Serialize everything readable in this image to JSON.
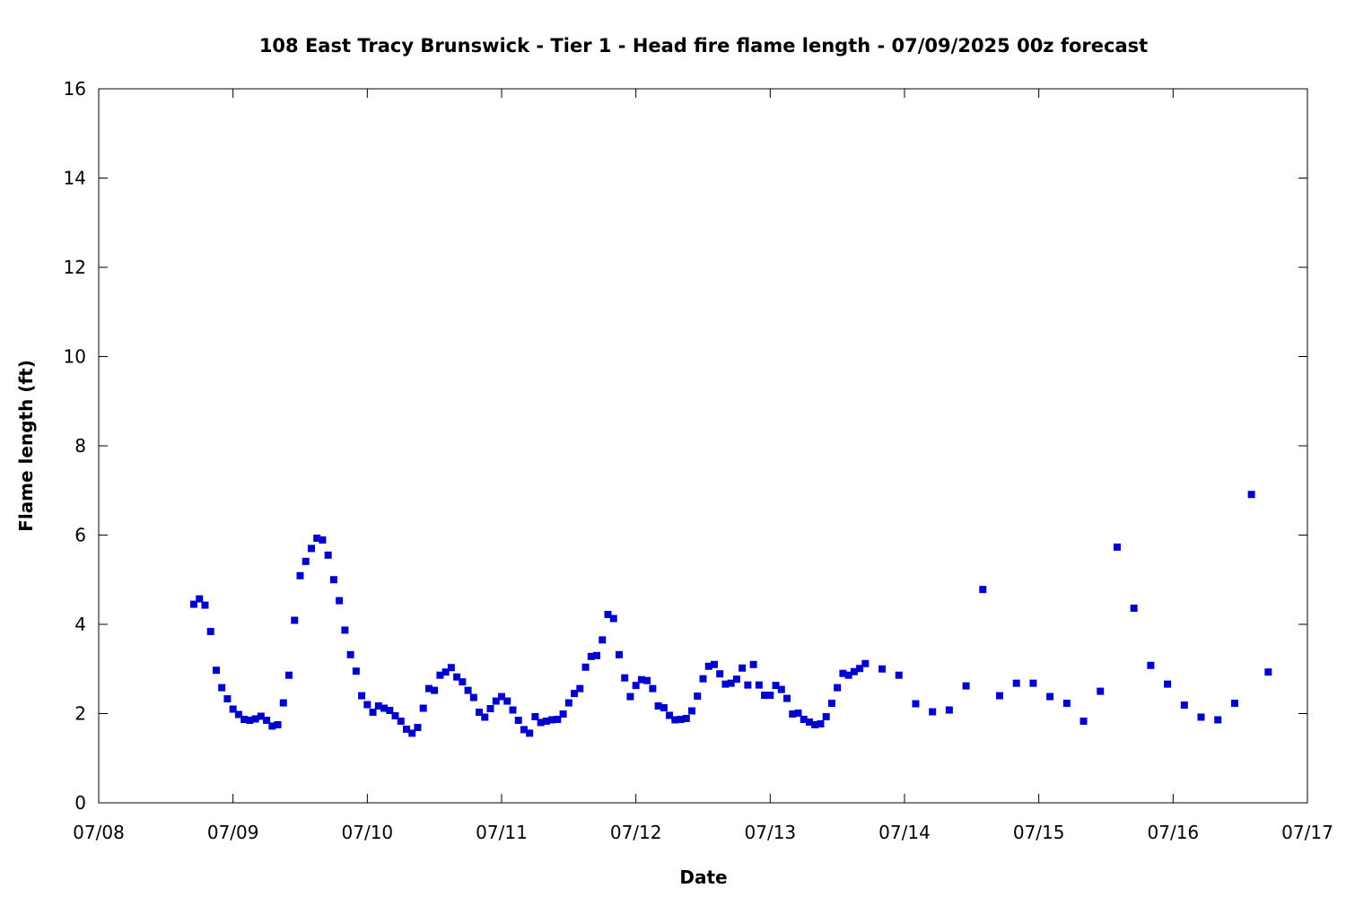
{
  "chart_data": {
    "type": "scatter",
    "title": "108 East Tracy Brunswick - Tier 1 - Head fire flame length - 07/09/2025 00z forecast",
    "xlabel": "Date",
    "ylabel": "Flame length (ft)",
    "xlim": [
      "2025-07-08 00:00",
      "2025-07-17 00:00"
    ],
    "ylim": [
      0,
      16
    ],
    "x_ticks": [
      "07/08",
      "07/09",
      "07/10",
      "07/11",
      "07/12",
      "07/13",
      "07/14",
      "07/15",
      "07/16",
      "07/17"
    ],
    "y_ticks": [
      "0",
      "2",
      "4",
      "6",
      "8",
      "10",
      "12",
      "14",
      "16"
    ],
    "grid": false,
    "legend": "none",
    "marker": "square",
    "marker_color": "#0000cc",
    "series": [
      {
        "x": [
          "2025-07-08 17:00",
          "2025-07-08 18:00",
          "2025-07-08 19:00",
          "2025-07-08 20:00",
          "2025-07-08 21:00",
          "2025-07-08 22:00",
          "2025-07-08 23:00",
          "2025-07-09 00:00",
          "2025-07-09 01:00",
          "2025-07-09 02:00",
          "2025-07-09 03:00",
          "2025-07-09 04:00",
          "2025-07-09 05:00",
          "2025-07-09 06:00",
          "2025-07-09 07:00",
          "2025-07-09 08:00",
          "2025-07-09 09:00",
          "2025-07-09 10:00",
          "2025-07-09 11:00",
          "2025-07-09 12:00",
          "2025-07-09 13:00",
          "2025-07-09 14:00",
          "2025-07-09 15:00",
          "2025-07-09 16:00",
          "2025-07-09 17:00",
          "2025-07-09 18:00",
          "2025-07-09 19:00",
          "2025-07-09 20:00",
          "2025-07-09 21:00",
          "2025-07-09 22:00",
          "2025-07-09 23:00",
          "2025-07-10 00:00",
          "2025-07-10 01:00",
          "2025-07-10 02:00",
          "2025-07-10 03:00",
          "2025-07-10 04:00",
          "2025-07-10 05:00",
          "2025-07-10 06:00",
          "2025-07-10 07:00",
          "2025-07-10 08:00",
          "2025-07-10 09:00",
          "2025-07-10 10:00",
          "2025-07-10 11:00",
          "2025-07-10 12:00",
          "2025-07-10 13:00",
          "2025-07-10 14:00",
          "2025-07-10 15:00",
          "2025-07-10 16:00",
          "2025-07-10 17:00",
          "2025-07-10 18:00",
          "2025-07-10 19:00",
          "2025-07-10 20:00",
          "2025-07-10 21:00",
          "2025-07-10 22:00",
          "2025-07-10 23:00",
          "2025-07-11 00:00",
          "2025-07-11 01:00",
          "2025-07-11 02:00",
          "2025-07-11 03:00",
          "2025-07-11 04:00",
          "2025-07-11 05:00",
          "2025-07-11 06:00",
          "2025-07-11 07:00",
          "2025-07-11 08:00",
          "2025-07-11 09:00",
          "2025-07-11 10:00",
          "2025-07-11 11:00",
          "2025-07-11 12:00",
          "2025-07-11 13:00",
          "2025-07-11 14:00",
          "2025-07-11 15:00",
          "2025-07-11 16:00",
          "2025-07-11 17:00",
          "2025-07-11 18:00",
          "2025-07-11 19:00",
          "2025-07-11 20:00",
          "2025-07-11 21:00",
          "2025-07-11 22:00",
          "2025-07-11 23:00",
          "2025-07-12 00:00",
          "2025-07-12 01:00",
          "2025-07-12 02:00",
          "2025-07-12 03:00",
          "2025-07-12 04:00",
          "2025-07-12 05:00",
          "2025-07-12 06:00",
          "2025-07-12 07:00",
          "2025-07-12 08:00",
          "2025-07-12 09:00",
          "2025-07-12 10:00",
          "2025-07-12 11:00",
          "2025-07-12 12:00",
          "2025-07-12 13:00",
          "2025-07-12 14:00",
          "2025-07-12 15:00",
          "2025-07-12 16:00",
          "2025-07-12 17:00",
          "2025-07-12 18:00",
          "2025-07-12 19:00",
          "2025-07-12 20:00",
          "2025-07-12 21:00",
          "2025-07-12 22:00",
          "2025-07-12 23:00",
          "2025-07-13 00:00",
          "2025-07-13 01:00",
          "2025-07-13 02:00",
          "2025-07-13 03:00",
          "2025-07-13 04:00",
          "2025-07-13 05:00",
          "2025-07-13 06:00",
          "2025-07-13 07:00",
          "2025-07-13 08:00",
          "2025-07-13 09:00",
          "2025-07-13 10:00",
          "2025-07-13 11:00",
          "2025-07-13 12:00",
          "2025-07-13 13:00",
          "2025-07-13 14:00",
          "2025-07-13 15:00",
          "2025-07-13 16:00",
          "2025-07-13 17:00",
          "2025-07-13 20:00",
          "2025-07-13 23:00",
          "2025-07-14 02:00",
          "2025-07-14 05:00",
          "2025-07-14 08:00",
          "2025-07-14 11:00",
          "2025-07-14 14:00",
          "2025-07-14 17:00",
          "2025-07-14 20:00",
          "2025-07-14 23:00",
          "2025-07-15 02:00",
          "2025-07-15 05:00",
          "2025-07-15 08:00",
          "2025-07-15 11:00",
          "2025-07-15 14:00",
          "2025-07-15 17:00",
          "2025-07-15 20:00",
          "2025-07-15 23:00",
          "2025-07-16 02:00",
          "2025-07-16 05:00",
          "2025-07-16 08:00",
          "2025-07-16 11:00",
          "2025-07-16 14:00",
          "2025-07-16 17:00"
        ],
        "y": [
          4.45,
          4.57,
          4.43,
          3.84,
          2.97,
          2.58,
          2.33,
          2.1,
          1.98,
          1.87,
          1.85,
          1.88,
          1.94,
          1.85,
          1.72,
          1.75,
          2.24,
          2.86,
          4.09,
          5.09,
          5.41,
          5.7,
          5.93,
          5.89,
          5.55,
          5.0,
          4.53,
          3.87,
          3.32,
          2.95,
          2.4,
          2.2,
          2.03,
          2.17,
          2.12,
          2.07,
          1.95,
          1.83,
          1.65,
          1.56,
          1.69,
          2.12,
          2.56,
          2.52,
          2.86,
          2.93,
          3.03,
          2.82,
          2.71,
          2.52,
          2.36,
          2.03,
          1.92,
          2.11,
          2.28,
          2.38,
          2.28,
          2.08,
          1.85,
          1.64,
          1.56,
          1.93,
          1.8,
          1.83,
          1.86,
          1.87,
          1.99,
          2.24,
          2.45,
          2.56,
          3.04,
          3.28,
          3.3,
          3.65,
          4.22,
          4.13,
          3.32,
          2.8,
          2.38,
          2.63,
          2.76,
          2.74,
          2.56,
          2.17,
          2.13,
          1.96,
          1.86,
          1.87,
          1.89,
          2.06,
          2.39,
          2.78,
          3.06,
          3.1,
          2.89,
          2.66,
          2.68,
          2.77,
          3.02,
          2.64,
          3.1,
          2.64,
          2.41,
          2.41,
          2.63,
          2.54,
          2.34,
          1.99,
          2.01,
          1.87,
          1.81,
          1.75,
          1.77,
          1.93,
          2.23,
          2.58,
          2.9,
          2.86,
          2.94,
          3.01,
          3.12,
          3.0,
          2.86,
          2.22,
          2.04,
          2.08,
          2.62,
          4.78,
          2.4,
          2.68,
          2.68,
          2.38,
          2.23,
          1.83,
          2.5,
          5.73,
          4.36,
          3.08,
          2.66,
          2.19,
          1.92,
          1.86,
          2.23,
          6.91,
          2.93
        ]
      }
    ]
  }
}
